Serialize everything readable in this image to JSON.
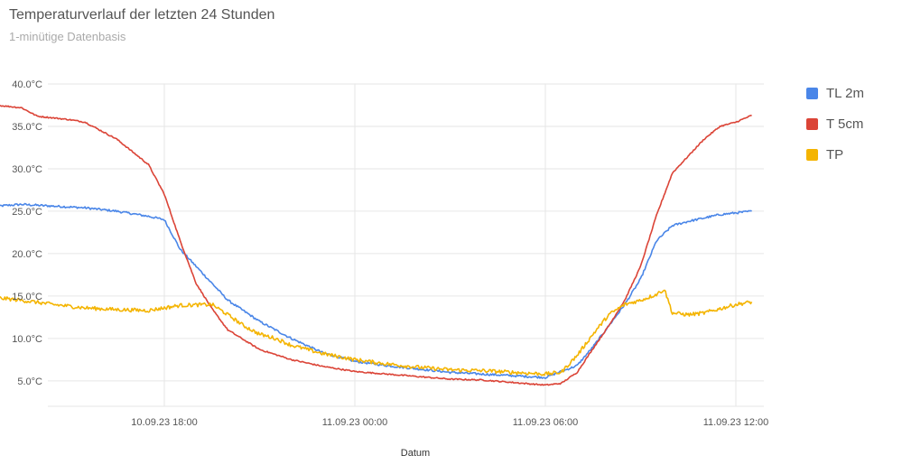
{
  "chart_data": {
    "type": "line",
    "title": "Temperaturverlauf der letzten 24 Stunden",
    "subtitle": "1-minütige Datenbasis",
    "xlabel": "Datum",
    "ylabel": "",
    "x_start": "10.09.23 12:42",
    "x_end": "11.09.23 12:30",
    "x_ticks": [
      {
        "label": "10.09.23 18:00",
        "t": "10.09.23 18:00"
      },
      {
        "label": "11.09.23 00:00",
        "t": "11.09.23 00:00"
      },
      {
        "label": "11.09.23 06:00",
        "t": "11.09.23 06:00"
      },
      {
        "label": "11.09.23 12:00",
        "t": "11.09.23 12:00"
      }
    ],
    "ylim": [
      2,
      40
    ],
    "y_ticks": [
      {
        "label": "40.0°C",
        "v": 40
      },
      {
        "label": "35.0°C",
        "v": 35
      },
      {
        "label": "30.0°C",
        "v": 30
      },
      {
        "label": "25.0°C",
        "v": 25
      },
      {
        "label": "20.0°C",
        "v": 20
      },
      {
        "label": "15.0°C",
        "v": 15
      },
      {
        "label": "10.0°C",
        "v": 10
      },
      {
        "label": "5.0°C",
        "v": 5
      }
    ],
    "grid": true,
    "legend_position": "right",
    "series": [
      {
        "name": "TL 2m",
        "color": "#4a86e8",
        "points": [
          [
            "10.09.23 12:42",
            25.6
          ],
          [
            "10.09.23 13:30",
            25.8
          ],
          [
            "10.09.23 14:30",
            25.6
          ],
          [
            "10.09.23 15:30",
            25.4
          ],
          [
            "10.09.23 16:30",
            25.0
          ],
          [
            "10.09.23 17:30",
            24.4
          ],
          [
            "10.09.23 18:00",
            24.0
          ],
          [
            "10.09.23 18:30",
            20.5
          ],
          [
            "10.09.23 19:00",
            18.5
          ],
          [
            "10.09.23 19:30",
            16.5
          ],
          [
            "10.09.23 20:00",
            14.5
          ],
          [
            "10.09.23 21:00",
            12.0
          ],
          [
            "10.09.23 22:00",
            10.0
          ],
          [
            "10.09.23 23:00",
            8.3
          ],
          [
            "11.09.23 00:00",
            7.3
          ],
          [
            "11.09.23 01:00",
            6.8
          ],
          [
            "11.09.23 02:00",
            6.4
          ],
          [
            "11.09.23 03:00",
            6.0
          ],
          [
            "11.09.23 04:00",
            5.8
          ],
          [
            "11.09.23 05:00",
            5.6
          ],
          [
            "11.09.23 06:00",
            5.4
          ],
          [
            "11.09.23 07:00",
            6.8
          ],
          [
            "11.09.23 07:30",
            9.0
          ],
          [
            "11.09.23 08:00",
            11.5
          ],
          [
            "11.09.23 08:30",
            14.0
          ],
          [
            "11.09.23 09:00",
            17.0
          ],
          [
            "11.09.23 09:30",
            21.5
          ],
          [
            "11.09.23 10:00",
            23.3
          ],
          [
            "11.09.23 10:30",
            23.8
          ],
          [
            "11.09.23 11:00",
            24.2
          ],
          [
            "11.09.23 11:30",
            24.6
          ],
          [
            "11.09.23 12:00",
            24.8
          ],
          [
            "11.09.23 12:30",
            25.0
          ]
        ]
      },
      {
        "name": "T 5cm",
        "color": "#db4437",
        "points": [
          [
            "10.09.23 12:42",
            37.5
          ],
          [
            "10.09.23 13:30",
            37.2
          ],
          [
            "10.09.23 14:00",
            36.2
          ],
          [
            "10.09.23 15:00",
            35.8
          ],
          [
            "10.09.23 15:30",
            35.5
          ],
          [
            "10.09.23 16:00",
            34.5
          ],
          [
            "10.09.23 16:30",
            33.5
          ],
          [
            "10.09.23 17:00",
            32.0
          ],
          [
            "10.09.23 17:30",
            30.5
          ],
          [
            "10.09.23 18:00",
            27.0
          ],
          [
            "10.09.23 18:30",
            21.5
          ],
          [
            "10.09.23 19:00",
            16.5
          ],
          [
            "10.09.23 19:30",
            13.5
          ],
          [
            "10.09.23 20:00",
            11.0
          ],
          [
            "10.09.23 21:00",
            8.7
          ],
          [
            "10.09.23 22:00",
            7.5
          ],
          [
            "10.09.23 23:00",
            6.7
          ],
          [
            "11.09.23 00:00",
            6.1
          ],
          [
            "11.09.23 01:00",
            5.8
          ],
          [
            "11.09.23 02:00",
            5.5
          ],
          [
            "11.09.23 03:00",
            5.2
          ],
          [
            "11.09.23 04:00",
            5.1
          ],
          [
            "11.09.23 05:00",
            4.8
          ],
          [
            "11.09.23 06:00",
            4.5
          ],
          [
            "11.09.23 06:30",
            4.7
          ],
          [
            "11.09.23 07:00",
            6.0
          ],
          [
            "11.09.23 07:30",
            8.8
          ],
          [
            "11.09.23 08:00",
            11.5
          ],
          [
            "11.09.23 08:30",
            14.5
          ],
          [
            "11.09.23 09:00",
            18.5
          ],
          [
            "11.09.23 09:30",
            24.5
          ],
          [
            "11.09.23 10:00",
            29.5
          ],
          [
            "11.09.23 10:30",
            31.5
          ],
          [
            "11.09.23 11:00",
            33.5
          ],
          [
            "11.09.23 11:30",
            35.0
          ],
          [
            "11.09.23 12:00",
            35.5
          ],
          [
            "11.09.23 12:30",
            36.3
          ]
        ]
      },
      {
        "name": "TP",
        "color": "#f4b400",
        "points": [
          [
            "10.09.23 12:42",
            14.8
          ],
          [
            "10.09.23 13:30",
            14.5
          ],
          [
            "10.09.23 14:30",
            14.0
          ],
          [
            "10.09.23 15:30",
            13.6
          ],
          [
            "10.09.23 16:30",
            13.4
          ],
          [
            "10.09.23 17:30",
            13.3
          ],
          [
            "10.09.23 18:00",
            13.6
          ],
          [
            "10.09.23 18:30",
            13.9
          ],
          [
            "10.09.23 19:30",
            14.0
          ],
          [
            "10.09.23 20:00",
            12.8
          ],
          [
            "10.09.23 20:30",
            11.5
          ],
          [
            "10.09.23 21:00",
            10.5
          ],
          [
            "10.09.23 21:30",
            10.0
          ],
          [
            "10.09.23 22:00",
            9.2
          ],
          [
            "10.09.23 23:00",
            8.2
          ],
          [
            "11.09.23 00:00",
            7.5
          ],
          [
            "11.09.23 01:00",
            7.0
          ],
          [
            "11.09.23 02:00",
            6.6
          ],
          [
            "11.09.23 03:00",
            6.3
          ],
          [
            "11.09.23 04:00",
            6.2
          ],
          [
            "11.09.23 05:00",
            6.0
          ],
          [
            "11.09.23 06:00",
            5.8
          ],
          [
            "11.09.23 06:30",
            6.0
          ],
          [
            "11.09.23 07:00",
            8.0
          ],
          [
            "11.09.23 07:30",
            10.5
          ],
          [
            "11.09.23 08:00",
            12.8
          ],
          [
            "11.09.23 08:30",
            14.0
          ],
          [
            "11.09.23 09:00",
            14.5
          ],
          [
            "11.09.23 09:30",
            15.2
          ],
          [
            "11.09.23 09:45",
            15.8
          ],
          [
            "11.09.23 10:00",
            13.0
          ],
          [
            "11.09.23 10:30",
            12.8
          ],
          [
            "11.09.23 11:00",
            13.0
          ],
          [
            "11.09.23 11:30",
            13.5
          ],
          [
            "11.09.23 12:00",
            14.0
          ],
          [
            "11.09.23 12:30",
            14.3
          ]
        ]
      }
    ]
  }
}
